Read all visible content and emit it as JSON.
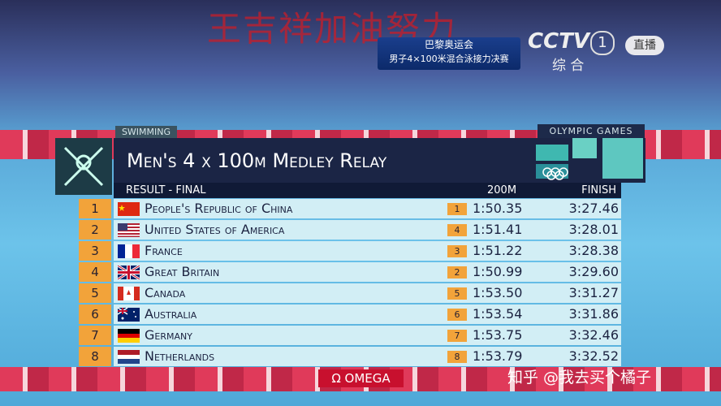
{
  "watermark": "王吉祥加油努力",
  "broadcast": {
    "event": "巴黎奥运会",
    "subtitle": "男子4×100米混合泳接力决赛",
    "channel": "CCTV",
    "channel_number": "1",
    "channel_name": "综 合",
    "live": "直播"
  },
  "header": {
    "sport": "SWIMMING",
    "games": "OLYMPIC GAMES",
    "title": "Men's 4 x 100m Medley Relay"
  },
  "table": {
    "columns": [
      "RESULT - FINAL",
      "200M",
      "FINISH"
    ],
    "rows": [
      [
        "1",
        "People's Republic of China",
        "1",
        "1:50.35",
        "3:27.46"
      ],
      [
        "2",
        "United States of America",
        "4",
        "1:51.41",
        "3:28.01"
      ],
      [
        "3",
        "France",
        "3",
        "1:51.22",
        "3:28.38"
      ],
      [
        "4",
        "Great Britain",
        "2",
        "1:50.99",
        "3:29.60"
      ],
      [
        "5",
        "Canada",
        "5",
        "1:53.50",
        "3:31.27"
      ],
      [
        "6",
        "Australia",
        "6",
        "1:53.54",
        "3:31.86"
      ],
      [
        "7",
        "Germany",
        "7",
        "1:53.75",
        "3:32.46"
      ],
      [
        "8",
        "Netherlands",
        "8",
        "1:53.79",
        "3:32.52"
      ]
    ]
  },
  "sponsor": "Ω OMEGA",
  "credit": "知乎 @我去买个橘子"
}
